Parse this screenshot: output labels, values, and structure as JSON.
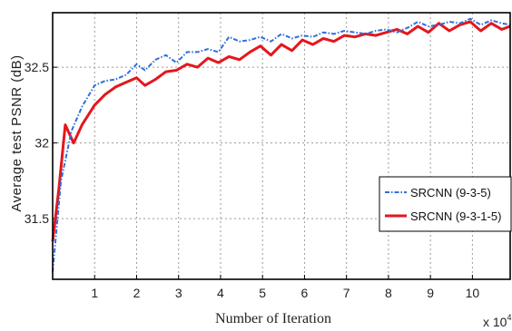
{
  "chart_data": {
    "type": "line",
    "title": "",
    "xlabel": "Number of Iteration",
    "ylabel": "Average test PSNR (dB)",
    "x_multiplier_label": "x 10",
    "x_multiplier_exp": "4",
    "xlim": [
      0,
      10.9
    ],
    "ylim": [
      31.1,
      32.86
    ],
    "xticks": [
      1,
      2,
      3,
      4,
      5,
      6,
      7,
      8,
      9,
      10
    ],
    "yticks": [
      31.5,
      32,
      32.5
    ],
    "ytick_labels": [
      "31.5",
      "32",
      "32.5"
    ],
    "grid": true,
    "legend_position": "right",
    "series": [
      {
        "name": "SRCNN (9-3-5)",
        "color": "#2f6fdc",
        "style": "dash-dot",
        "x": [
          0,
          0.2,
          0.45,
          0.7,
          1.0,
          1.25,
          1.5,
          1.75,
          2.0,
          2.2,
          2.45,
          2.7,
          2.95,
          3.2,
          3.45,
          3.7,
          3.95,
          4.2,
          4.45,
          4.7,
          4.95,
          5.2,
          5.45,
          5.7,
          5.95,
          6.2,
          6.45,
          6.7,
          6.95,
          7.2,
          7.45,
          7.7,
          7.95,
          8.2,
          8.45,
          8.7,
          8.95,
          9.2,
          9.45,
          9.7,
          9.95,
          10.2,
          10.45,
          10.7,
          10.9
        ],
        "values": [
          31.15,
          31.75,
          32.08,
          32.24,
          32.38,
          32.41,
          32.42,
          32.45,
          32.52,
          32.48,
          32.55,
          32.58,
          32.53,
          32.6,
          32.6,
          32.62,
          32.6,
          32.7,
          32.67,
          32.68,
          32.7,
          32.67,
          32.72,
          32.69,
          32.71,
          32.7,
          32.73,
          32.72,
          32.74,
          32.73,
          32.72,
          32.74,
          32.75,
          32.73,
          32.76,
          32.8,
          32.77,
          32.78,
          32.8,
          32.79,
          32.82,
          32.78,
          32.81,
          32.79,
          32.78
        ]
      },
      {
        "name": "SRCNN (9-3-1-5)",
        "color": "#e5161c",
        "style": "solid",
        "x": [
          0,
          0.15,
          0.3,
          0.5,
          0.7,
          1.0,
          1.25,
          1.5,
          1.75,
          2.0,
          2.2,
          2.45,
          2.7,
          2.95,
          3.2,
          3.45,
          3.7,
          3.95,
          4.2,
          4.45,
          4.7,
          4.95,
          5.2,
          5.45,
          5.7,
          5.95,
          6.2,
          6.45,
          6.7,
          6.95,
          7.2,
          7.45,
          7.7,
          7.95,
          8.2,
          8.45,
          8.7,
          8.95,
          9.2,
          9.45,
          9.7,
          9.95,
          10.2,
          10.45,
          10.7,
          10.9
        ],
        "values": [
          31.35,
          31.7,
          32.12,
          32.0,
          32.12,
          32.25,
          32.32,
          32.37,
          32.4,
          32.43,
          32.38,
          32.42,
          32.47,
          32.48,
          32.52,
          32.5,
          32.56,
          32.53,
          32.57,
          32.55,
          32.6,
          32.64,
          32.58,
          32.65,
          32.61,
          32.68,
          32.65,
          32.69,
          32.67,
          32.71,
          32.7,
          32.72,
          32.71,
          32.73,
          32.75,
          32.72,
          32.77,
          32.73,
          32.79,
          32.74,
          32.78,
          32.8,
          32.74,
          32.79,
          32.75,
          32.77
        ]
      }
    ]
  }
}
